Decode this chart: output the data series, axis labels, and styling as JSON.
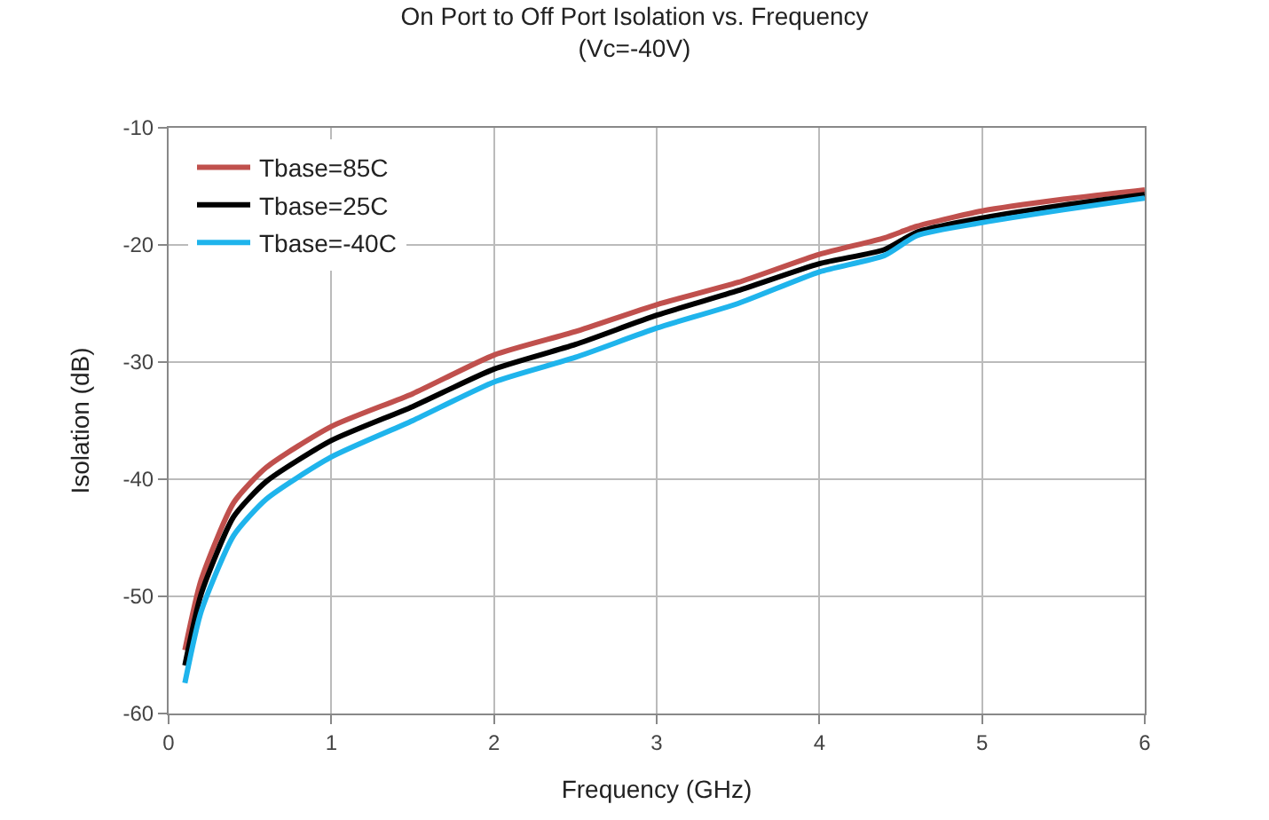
{
  "chart_data": {
    "type": "line",
    "title": "On Port to Off Port Isolation vs. Frequency\n(Vc=-40V)",
    "xlabel": "Frequency (GHz)",
    "ylabel": "Isolation (dB)",
    "xlim": [
      0,
      6
    ],
    "xticks": [
      0,
      1,
      2,
      3,
      4,
      5,
      6
    ],
    "ylim": [
      -60,
      -10
    ],
    "yticks": [
      -60,
      -50,
      -40,
      -30,
      -20,
      -10
    ],
    "grid": true,
    "legend": "top left",
    "marker": "none",
    "line_style": "solid",
    "series": [
      {
        "name": "Tbase=85C",
        "color": "#c0504d",
        "x": [
          0.1,
          0.2,
          0.4,
          0.6,
          1,
          1.5,
          2,
          2.5,
          3,
          3.5,
          4,
          4.4,
          4.6,
          5,
          5.5,
          6
        ],
        "values": [
          -54.6,
          -48.6,
          -42,
          -39,
          -35.5,
          -32.7,
          -29.4,
          -27.4,
          -25.1,
          -23.2,
          -20.8,
          -19.4,
          -18.4,
          -17.1,
          -16.1,
          -15.3
        ]
      },
      {
        "name": "Tbase=25C",
        "color": "#000000",
        "x": [
          0.1,
          0.2,
          0.4,
          0.6,
          1,
          1.5,
          2,
          2.5,
          3,
          3.5,
          4,
          4.4,
          4.6,
          5,
          5.5,
          6
        ],
        "values": [
          -55.9,
          -49.8,
          -43.2,
          -40.2,
          -36.7,
          -33.8,
          -30.6,
          -28.5,
          -26.0,
          -23.9,
          -21.6,
          -20.4,
          -18.9,
          -17.7,
          -16.6,
          -15.7
        ]
      },
      {
        "name": "Tbase=-40C",
        "color": "#1fb4ec",
        "x": [
          0.1,
          0.2,
          0.4,
          0.6,
          1,
          1.5,
          2,
          2.5,
          3,
          3.5,
          4,
          4.4,
          4.6,
          5,
          5.5,
          6
        ],
        "values": [
          -57.4,
          -51.3,
          -44.8,
          -41.7,
          -38.1,
          -35.0,
          -31.7,
          -29.6,
          -27.1,
          -25.0,
          -22.3,
          -20.9,
          -19.2,
          -18.1,
          -17.0,
          -16.0
        ]
      }
    ]
  }
}
